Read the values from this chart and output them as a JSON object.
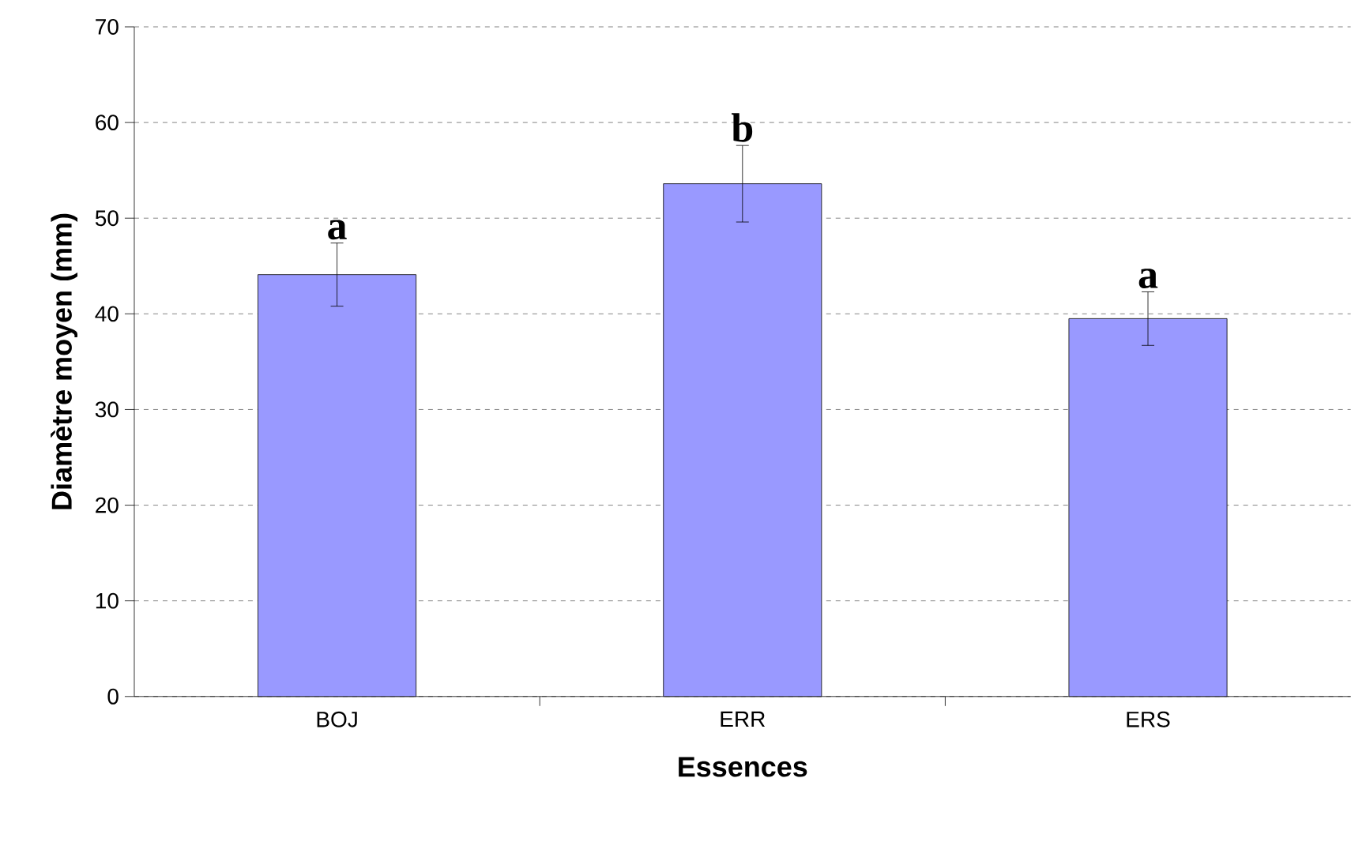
{
  "chart_data": {
    "type": "bar",
    "xlabel": "Essences",
    "ylabel": "Diamètre  moyen (mm)",
    "categories": [
      "BOJ",
      "ERR",
      "ERS"
    ],
    "values": [
      44.1,
      53.6,
      39.5
    ],
    "errors": [
      3.3,
      4.0,
      2.8
    ],
    "color": "#9999ff",
    "ylim": [
      0,
      70
    ],
    "yticks": [
      0,
      10,
      20,
      30,
      40,
      50,
      60,
      70
    ],
    "grid": "y",
    "annotations": [
      "a",
      "b",
      "a"
    ]
  }
}
